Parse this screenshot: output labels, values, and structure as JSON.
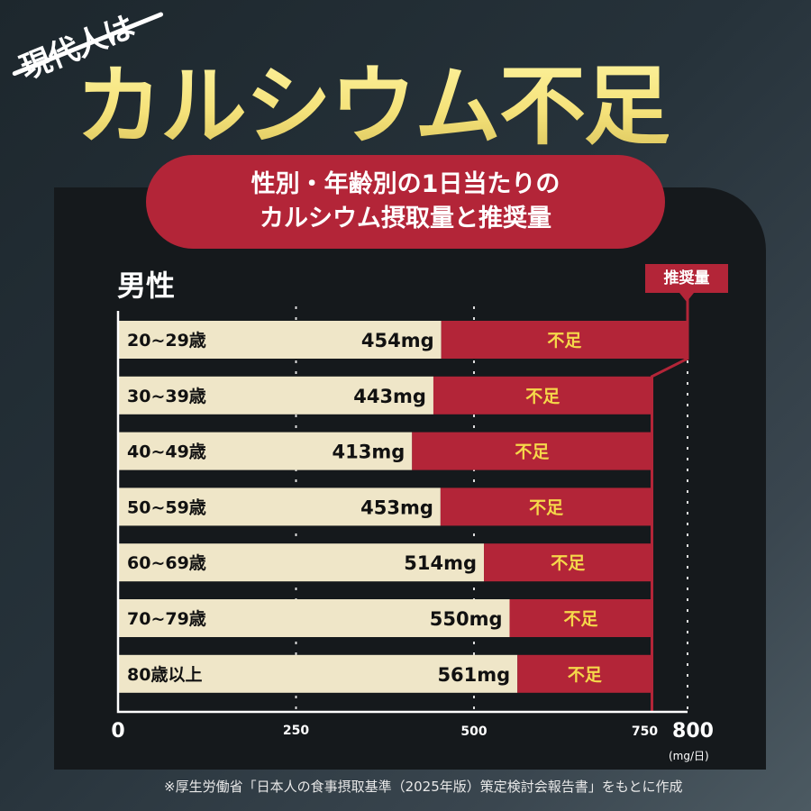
{
  "title": {
    "prefix": "現代人は",
    "main": "カルシウム不足"
  },
  "subtitle": {
    "line1": "性別・年齢別の1日当たりの",
    "line2": "カルシウム摂取量と推奨量"
  },
  "section": "男性",
  "recommended_label": "推奨量",
  "footnote": "※厚生労働省「日本人の食事摂取基準（2025年版）策定検討会報告書」をもとに作成",
  "colors": {
    "intake": "#efe6c8",
    "shortfall": "#b32538",
    "shortfall_text": "#f5d84a",
    "title": "#f5e27a"
  },
  "chart_data": {
    "type": "bar",
    "orientation": "horizontal",
    "stacked": true,
    "categories": [
      "20~29歳",
      "30~39歳",
      "40~49歳",
      "50~59歳",
      "60~69歳",
      "70~79歳",
      "80歳以上"
    ],
    "intake": [
      454,
      443,
      413,
      453,
      514,
      550,
      561
    ],
    "intake_labels": [
      "454mg",
      "443mg",
      "413mg",
      "453mg",
      "514mg",
      "550mg",
      "561mg"
    ],
    "recommended": [
      800,
      750,
      750,
      750,
      750,
      750,
      750
    ],
    "shortfall_label": "不足",
    "xlim": [
      0,
      800
    ],
    "ticks": [
      "0",
      "250",
      "500",
      "750",
      "800"
    ],
    "xunit": "(mg/日)"
  }
}
